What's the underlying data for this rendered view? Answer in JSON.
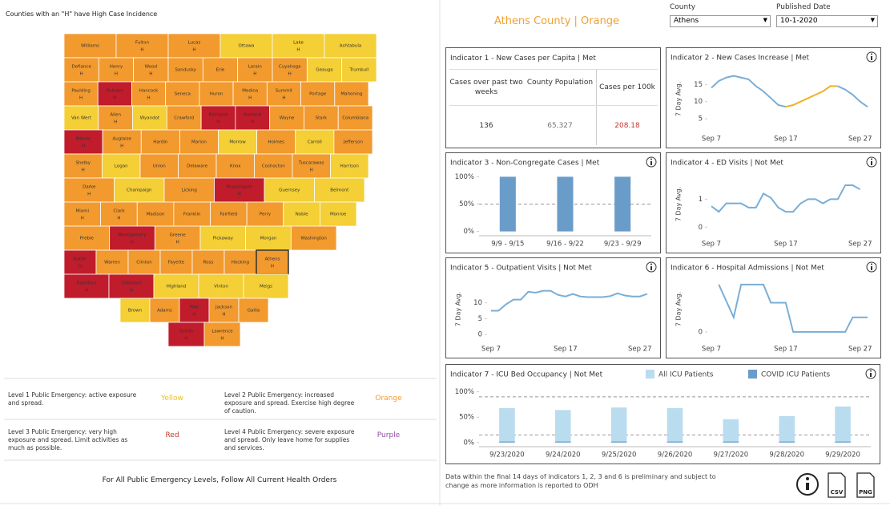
{
  "header": {
    "title": "Athens County | Orange",
    "county_label": "County",
    "county_value": "Athens",
    "date_label": "Published Date",
    "date_value": "10-1-2020"
  },
  "map": {
    "title": "Counties with an \"H\" have High Case Incidence",
    "colors": {
      "Yellow": "#f4cf35",
      "Orange": "#f29a2e",
      "Red": "#c01c2c"
    },
    "highlight": "Athens",
    "counties": [
      {
        "name": "Williams",
        "level": "Orange"
      },
      {
        "name": "Fulton",
        "level": "Orange",
        "mark": "H"
      },
      {
        "name": "Lucas",
        "level": "Orange",
        "mark": "H"
      },
      {
        "name": "Ottawa",
        "level": "Yellow"
      },
      {
        "name": "Lake",
        "level": "Yellow",
        "mark": "H"
      },
      {
        "name": "Ashtabula",
        "level": "Yellow"
      },
      {
        "name": "Defiance",
        "level": "Orange",
        "mark": "H"
      },
      {
        "name": "Henry",
        "level": "Orange",
        "mark": "H"
      },
      {
        "name": "Wood",
        "level": "Orange",
        "mark": "H"
      },
      {
        "name": "Sandusky",
        "level": "Orange"
      },
      {
        "name": "Erie",
        "level": "Orange"
      },
      {
        "name": "Lorain",
        "level": "Orange",
        "mark": "H"
      },
      {
        "name": "Cuyahoga",
        "level": "Orange",
        "mark": "H"
      },
      {
        "name": "Geauga",
        "level": "Yellow"
      },
      {
        "name": "Trumbull",
        "level": "Yellow"
      },
      {
        "name": "Paulding",
        "level": "Orange",
        "mark": "H"
      },
      {
        "name": "Putnam",
        "level": "Red",
        "mark": "H"
      },
      {
        "name": "Hancock",
        "level": "Orange",
        "mark": "H"
      },
      {
        "name": "Seneca",
        "level": "Orange"
      },
      {
        "name": "Huron",
        "level": "Orange"
      },
      {
        "name": "Medina",
        "level": "Orange",
        "mark": "H"
      },
      {
        "name": "Summit",
        "level": "Orange",
        "mark": "H"
      },
      {
        "name": "Portage",
        "level": "Orange"
      },
      {
        "name": "Mahoning",
        "level": "Orange"
      },
      {
        "name": "Van Wert",
        "level": "Yellow"
      },
      {
        "name": "Allen",
        "level": "Orange",
        "mark": "H"
      },
      {
        "name": "Wyandot",
        "level": "Yellow"
      },
      {
        "name": "Crawford",
        "level": "Orange"
      },
      {
        "name": "Richland",
        "level": "Red",
        "mark": "H"
      },
      {
        "name": "Ashland",
        "level": "Red",
        "mark": "H"
      },
      {
        "name": "Wayne",
        "level": "Orange"
      },
      {
        "name": "Stark",
        "level": "Orange"
      },
      {
        "name": "Columbiana",
        "level": "Orange"
      },
      {
        "name": "Mercer",
        "level": "Red",
        "mark": "H"
      },
      {
        "name": "Auglaize",
        "level": "Orange",
        "mark": "H"
      },
      {
        "name": "Hardin",
        "level": "Orange"
      },
      {
        "name": "Marion",
        "level": "Orange"
      },
      {
        "name": "Morrow",
        "level": "Yellow"
      },
      {
        "name": "Holmes",
        "level": "Orange"
      },
      {
        "name": "Carroll",
        "level": "Yellow"
      },
      {
        "name": "Jefferson",
        "level": "Orange"
      },
      {
        "name": "Shelby",
        "level": "Orange",
        "mark": "H"
      },
      {
        "name": "Logan",
        "level": "Yellow"
      },
      {
        "name": "Union",
        "level": "Orange"
      },
      {
        "name": "Delaware",
        "level": "Orange"
      },
      {
        "name": "Knox",
        "level": "Orange"
      },
      {
        "name": "Coshocton",
        "level": "Orange"
      },
      {
        "name": "Tuscarawas",
        "level": "Orange",
        "mark": "H"
      },
      {
        "name": "Harrison",
        "level": "Yellow"
      },
      {
        "name": "Darke",
        "level": "Orange",
        "mark": "H"
      },
      {
        "name": "Champaign",
        "level": "Yellow"
      },
      {
        "name": "Licking",
        "level": "Orange"
      },
      {
        "name": "Muskingum",
        "level": "Red",
        "mark": "H"
      },
      {
        "name": "Guernsey",
        "level": "Yellow"
      },
      {
        "name": "Belmont",
        "level": "Yellow"
      },
      {
        "name": "Miami",
        "level": "Orange",
        "mark": "H"
      },
      {
        "name": "Clark",
        "level": "Orange",
        "mark": "H"
      },
      {
        "name": "Madison",
        "level": "Orange"
      },
      {
        "name": "Franklin",
        "level": "Orange"
      },
      {
        "name": "Fairfield",
        "level": "Orange"
      },
      {
        "name": "Perry",
        "level": "Orange"
      },
      {
        "name": "Noble",
        "level": "Yellow"
      },
      {
        "name": "Monroe",
        "level": "Yellow"
      },
      {
        "name": "Preble",
        "level": "Orange"
      },
      {
        "name": "Montgomery",
        "level": "Red",
        "mark": "H"
      },
      {
        "name": "Greene",
        "level": "Orange",
        "mark": "H"
      },
      {
        "name": "Pickaway",
        "level": "Yellow"
      },
      {
        "name": "Morgan",
        "level": "Yellow"
      },
      {
        "name": "Washington",
        "level": "Orange"
      },
      {
        "name": "Butler",
        "level": "Red",
        "mark": "H"
      },
      {
        "name": "Warren",
        "level": "Orange"
      },
      {
        "name": "Clinton",
        "level": "Orange"
      },
      {
        "name": "Fayette",
        "level": "Orange"
      },
      {
        "name": "Ross",
        "level": "Orange"
      },
      {
        "name": "Hocking",
        "level": "Orange"
      },
      {
        "name": "Athens",
        "level": "Orange",
        "mark": "H"
      },
      {
        "name": "Hamilton",
        "level": "Red",
        "mark": "H"
      },
      {
        "name": "Clermont",
        "level": "Red",
        "mark": "H"
      },
      {
        "name": "Highland",
        "level": "Yellow"
      },
      {
        "name": "Vinton",
        "level": "Yellow"
      },
      {
        "name": "Meigs",
        "level": "Yellow"
      },
      {
        "name": "Brown",
        "level": "Yellow"
      },
      {
        "name": "Adams",
        "level": "Orange"
      },
      {
        "name": "Pike",
        "level": "Red",
        "mark": "H"
      },
      {
        "name": "Jackson",
        "level": "Orange",
        "mark": "H"
      },
      {
        "name": "Gallia",
        "level": "Orange"
      },
      {
        "name": "Scioto",
        "level": "Red",
        "mark": "H"
      },
      {
        "name": "Lawrence",
        "level": "Orange",
        "mark": "H"
      }
    ]
  },
  "legend": {
    "items": [
      {
        "text": "Level 1 Public Emergency: active exposure and spread.",
        "level": "Yellow",
        "color": "#e8c02a"
      },
      {
        "text": "Level 2 Public Emergency: increased exposure and spread. Exercise high degree of caution.",
        "level": "Orange",
        "color": "#f29a2e"
      },
      {
        "text": "Level 3 Public Emergency: very high exposure and spread. Limit activities as much as possible.",
        "level": "Red",
        "color": "#c0392b"
      },
      {
        "text": "Level 4 Public Emergency: severe exposure and spread. Only leave home for supplies and services.",
        "level": "Purple",
        "color": "#8e4a9e"
      }
    ],
    "footer": "For All Public Emergency Levels, Follow All Current Health Orders"
  },
  "indicator1": {
    "title": "Indicator 1 - New Cases per Capita | Met",
    "headers": [
      "Cases over past two weeks",
      "County Population",
      "Cases per 100k"
    ],
    "cells": [
      "136",
      "65,327",
      "208.18"
    ],
    "highlight_color": "#c0392b"
  },
  "charts": [
    {
      "type": "line",
      "title": "Indicator 2 - New Cases Increase | Met",
      "ylabel": "7 Day Avg.",
      "categories": [
        "Sep 7",
        null,
        null,
        null,
        null,
        null,
        null,
        null,
        null,
        null,
        "Sep 17",
        null,
        null,
        null,
        null,
        null,
        null,
        null,
        null,
        null,
        "Sep 27",
        null
      ],
      "series": [
        {
          "color": "#7aaed6",
          "values": [
            14,
            16,
            17,
            17.5,
            17,
            16.5,
            14.5,
            13,
            11,
            9,
            8.5,
            null,
            null,
            null,
            null,
            null,
            null,
            14.5,
            13.5,
            12,
            10,
            8.5
          ]
        },
        {
          "color": "#f0b323",
          "values": [
            null,
            null,
            null,
            null,
            null,
            null,
            null,
            null,
            null,
            null,
            8.5,
            9,
            10,
            11,
            12,
            13,
            14.5,
            14.5,
            null,
            null,
            null,
            null
          ]
        }
      ],
      "ylim": [
        2,
        19.5
      ],
      "yticks": [
        5,
        10,
        15
      ]
    },
    {
      "type": "bar",
      "title": "Indicator 3 - Non-Congregate Cases | Met",
      "categories": [
        "9/9 - 9/15",
        "9/16 - 9/22",
        "9/23 - 9/29"
      ],
      "series": [
        {
          "color": "#6a9cc9",
          "values": [
            100,
            100,
            100
          ]
        }
      ],
      "ylim": [
        -5,
        105
      ],
      "yticks": [
        {
          "value": 0,
          "label": "0%"
        },
        {
          "value": 50,
          "label": "50%"
        },
        {
          "value": 100,
          "label": "100%"
        }
      ],
      "reference_lines": [
        50
      ]
    },
    {
      "type": "line",
      "title": "Indicator 4 - ED Visits | Not Met",
      "ylabel": "7 Day Avg.",
      "categories": [
        "Sep 7",
        null,
        null,
        null,
        null,
        null,
        null,
        null,
        null,
        null,
        "Sep 17",
        null,
        null,
        null,
        null,
        null,
        null,
        null,
        null,
        null,
        "Sep 27",
        null
      ],
      "series": [
        {
          "color": "#7aaed6",
          "values": [
            0.75,
            0.55,
            0.85,
            0.85,
            0.85,
            0.7,
            0.7,
            1.2,
            1.05,
            0.7,
            0.55,
            0.55,
            0.85,
            1.0,
            1.0,
            0.85,
            1.0,
            1.0,
            1.5,
            1.5,
            1.35,
            null
          ]
        }
      ],
      "ylim": [
        -0.25,
        1.9
      ],
      "yticks": [
        0,
        1
      ]
    },
    {
      "type": "line",
      "title": "Indicator 5 - Outpatient Visits | Not Met",
      "ylabel": "7 Day Avg.",
      "categories": [
        "Sep 7",
        null,
        null,
        null,
        null,
        null,
        null,
        null,
        null,
        null,
        "Sep 17",
        null,
        null,
        null,
        null,
        null,
        null,
        null,
        null,
        null,
        "Sep 27",
        null
      ],
      "series": [
        {
          "color": "#7aaed6",
          "values": [
            7.5,
            7.5,
            9.5,
            11,
            11,
            13.5,
            13.2,
            13.8,
            13.8,
            12.5,
            12,
            12.8,
            12,
            11.8,
            11.8,
            11.8,
            12.1,
            13,
            12.3,
            12,
            12,
            12.8
          ]
        }
      ],
      "ylim": [
        -1.5,
        17.5
      ],
      "yticks": [
        0,
        5,
        10
      ]
    },
    {
      "type": "line",
      "title": "Indicator 6 - Hospital Admissions | Not Met",
      "ylabel": "7 Day Avg.",
      "categories": [
        "Sep 7",
        null,
        null,
        null,
        null,
        null,
        null,
        null,
        null,
        null,
        "Sep 17",
        null,
        null,
        null,
        null,
        null,
        null,
        null,
        null,
        null,
        "Sep 27",
        null
      ],
      "series": [
        {
          "color": "#7aaed6",
          "values": [
            null,
            1.3,
            0.85,
            0.4,
            1.3,
            1.3,
            1.3,
            1.3,
            0.8,
            0.8,
            0.8,
            0,
            0,
            0,
            0,
            0,
            0,
            0,
            0,
            0.4,
            0.4,
            0.4
          ]
        }
      ],
      "ylim": [
        -0.2,
        1.45
      ],
      "yticks": [
        0
      ]
    },
    {
      "type": "bar",
      "title": "Indicator 7 - ICU Bed Occupancy | Not Met",
      "categories": [
        "9/23/2020",
        "9/24/2020",
        "9/25/2020",
        "9/26/2020",
        "9/27/2020",
        "9/28/2020",
        "9/29/2020"
      ],
      "series": [
        {
          "name": "All ICU Patients",
          "color": "#b9dcef",
          "values": [
            68,
            64,
            69,
            68,
            46,
            52,
            71
          ]
        },
        {
          "name": "COVID ICU Patients",
          "color": "#6a9cc9",
          "values": [
            2,
            2,
            2,
            2,
            2,
            2,
            2
          ]
        }
      ],
      "ylim": [
        -5,
        112
      ],
      "yticks": [
        {
          "value": 0,
          "label": "0%"
        },
        {
          "value": 50,
          "label": "50%"
        },
        {
          "value": 100,
          "label": "100%"
        }
      ],
      "reference_lines": [
        90,
        15
      ]
    }
  ],
  "note": "Data within the final 14 days of indicators 1, 2, 3 and 6 is preliminary and subject to change as more information is reported to ODH",
  "buttons": [
    "CSV",
    "PNG"
  ]
}
